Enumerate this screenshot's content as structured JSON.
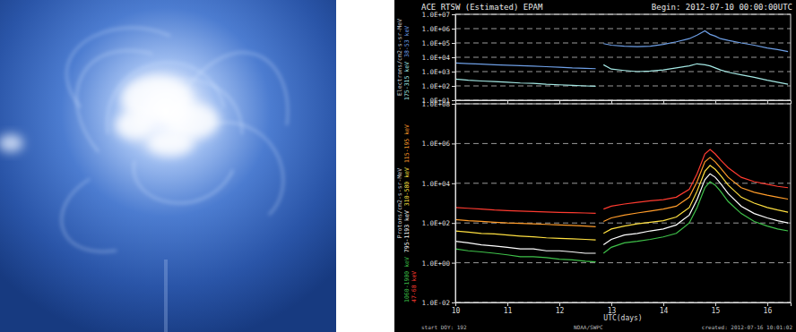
{
  "chart_data": [
    {
      "type": "line",
      "title": "ACE RTSW (Estimated) EPAM",
      "subtitle": "Begin: 2012-07-10 00:00:00UTC",
      "ylabel": "Electrons/cm2-s-sr-MeV",
      "log": "y",
      "grid": true,
      "tick_labels": "y",
      "x": [
        10,
        10.25,
        10.5,
        10.75,
        11,
        11.25,
        11.5,
        11.75,
        12,
        12.25,
        12.5,
        12.7,
        12.78,
        12.85,
        13,
        13.25,
        13.5,
        13.75,
        14,
        14.25,
        14.5,
        14.65,
        14.8,
        14.9,
        15,
        15.1,
        15.25,
        15.5,
        15.75,
        16,
        16.2,
        16.4
      ],
      "xlim": [
        10,
        16.45
      ],
      "xticks": [
        10,
        11,
        12,
        13,
        14,
        15,
        16
      ],
      "ylim": [
        10,
        10000000
      ],
      "yticks": [
        {
          "value": 10,
          "label": "1.0E+01"
        },
        {
          "value": 100,
          "label": "1.0E+02"
        },
        {
          "value": 1000,
          "label": "1.0E+03"
        },
        {
          "value": 10000,
          "label": "1.0E+04"
        },
        {
          "value": 100000,
          "label": "1.0E+05"
        },
        {
          "value": 1000000,
          "label": "1.0E+06"
        },
        {
          "value": 10000000,
          "label": "1.0E+07"
        }
      ],
      "series": [
        {
          "name": "38-53 keV",
          "color": "#6e9fe6",
          "values": [
            4000,
            3600,
            3300,
            3000,
            2800,
            2600,
            2400,
            2200,
            2000,
            1800,
            1700,
            1600,
            null,
            90000,
            70000,
            60000,
            55000,
            60000,
            80000,
            120000,
            200000,
            350000,
            700000,
            400000,
            300000,
            200000,
            150000,
            100000,
            70000,
            45000,
            35000,
            25000
          ]
        },
        {
          "name": "175-315 keV",
          "color": "#a4e8e4",
          "values": [
            300,
            250,
            220,
            200,
            180,
            160,
            150,
            130,
            120,
            110,
            100,
            95,
            null,
            3000,
            1500,
            1200,
            1000,
            1100,
            1300,
            1800,
            2500,
            3500,
            3000,
            2500,
            1800,
            1300,
            900,
            600,
            400,
            250,
            180,
            130
          ]
        }
      ]
    },
    {
      "type": "line",
      "xlabel": "UTC(days)",
      "ylabel": "Protons/cm2-s-sr-MeV",
      "annotations": [
        "start DOY: 192",
        "NOAA/SWPC",
        "created: 2012-07-16 10:01:02"
      ],
      "log": "y",
      "grid": true,
      "x": [
        10,
        10.25,
        10.5,
        10.75,
        11,
        11.25,
        11.5,
        11.75,
        12,
        12.25,
        12.5,
        12.7,
        12.78,
        12.85,
        13,
        13.25,
        13.5,
        13.75,
        14,
        14.25,
        14.5,
        14.65,
        14.8,
        14.9,
        15,
        15.1,
        15.25,
        15.5,
        15.75,
        16,
        16.2,
        16.4
      ],
      "xlim": [
        10,
        16.45
      ],
      "xticks": [
        10,
        11,
        12,
        13,
        14,
        15,
        16
      ],
      "ylim": [
        0.01,
        100000000
      ],
      "yticks": [
        {
          "value": 0.01,
          "label": "1.0E-02"
        },
        {
          "value": 1,
          "label": "1.0E+00"
        },
        {
          "value": 100,
          "label": "1.0E+02"
        },
        {
          "value": 10000,
          "label": "1.0E+04"
        },
        {
          "value": 1000000,
          "label": "1.0E+06"
        },
        {
          "value": 100000000,
          "label": "1.0E+08"
        }
      ],
      "series": [
        {
          "name": "47-68 keV",
          "color": "#ff3b30",
          "values": [
            600,
            550,
            500,
            450,
            420,
            400,
            380,
            360,
            340,
            330,
            320,
            310,
            null,
            500,
            700,
            900,
            1100,
            1300,
            1500,
            2000,
            5000,
            30000,
            300000,
            500000,
            300000,
            150000,
            60000,
            20000,
            12000,
            9000,
            7000,
            6000
          ]
        },
        {
          "name": "115-195 keV",
          "color": "#ff9c2a",
          "values": [
            150,
            130,
            120,
            110,
            100,
            95,
            90,
            85,
            80,
            75,
            70,
            65,
            null,
            120,
            180,
            250,
            320,
            400,
            500,
            700,
            2000,
            12000,
            120000,
            200000,
            120000,
            60000,
            20000,
            6000,
            3500,
            2500,
            2000,
            1600
          ]
        },
        {
          "name": "310-580 keV",
          "color": "#ffe040",
          "values": [
            40,
            35,
            30,
            28,
            25,
            22,
            20,
            18,
            17,
            16,
            15,
            14,
            null,
            30,
            50,
            70,
            90,
            110,
            130,
            200,
            600,
            4000,
            40000,
            80000,
            50000,
            25000,
            8000,
            2000,
            1000,
            600,
            450,
            350
          ]
        },
        {
          "name": "795-1193 keV",
          "color": "#ffffff",
          "values": [
            12,
            10,
            8,
            7,
            6,
            5,
            5,
            4,
            4,
            3.5,
            3,
            3,
            null,
            8,
            15,
            25,
            30,
            40,
            50,
            80,
            250,
            1500,
            15000,
            30000,
            20000,
            10000,
            3000,
            700,
            300,
            180,
            130,
            100
          ]
        },
        {
          "name": "1060-1900 keV",
          "color": "#3fc24a",
          "values": [
            5,
            4,
            3.5,
            3,
            2.5,
            2,
            2,
            1.8,
            1.5,
            1.4,
            1.2,
            1.1,
            null,
            3,
            6,
            10,
            12,
            15,
            20,
            30,
            100,
            600,
            6000,
            12000,
            8000,
            4000,
            1200,
            300,
            120,
            70,
            50,
            40
          ]
        }
      ]
    }
  ]
}
